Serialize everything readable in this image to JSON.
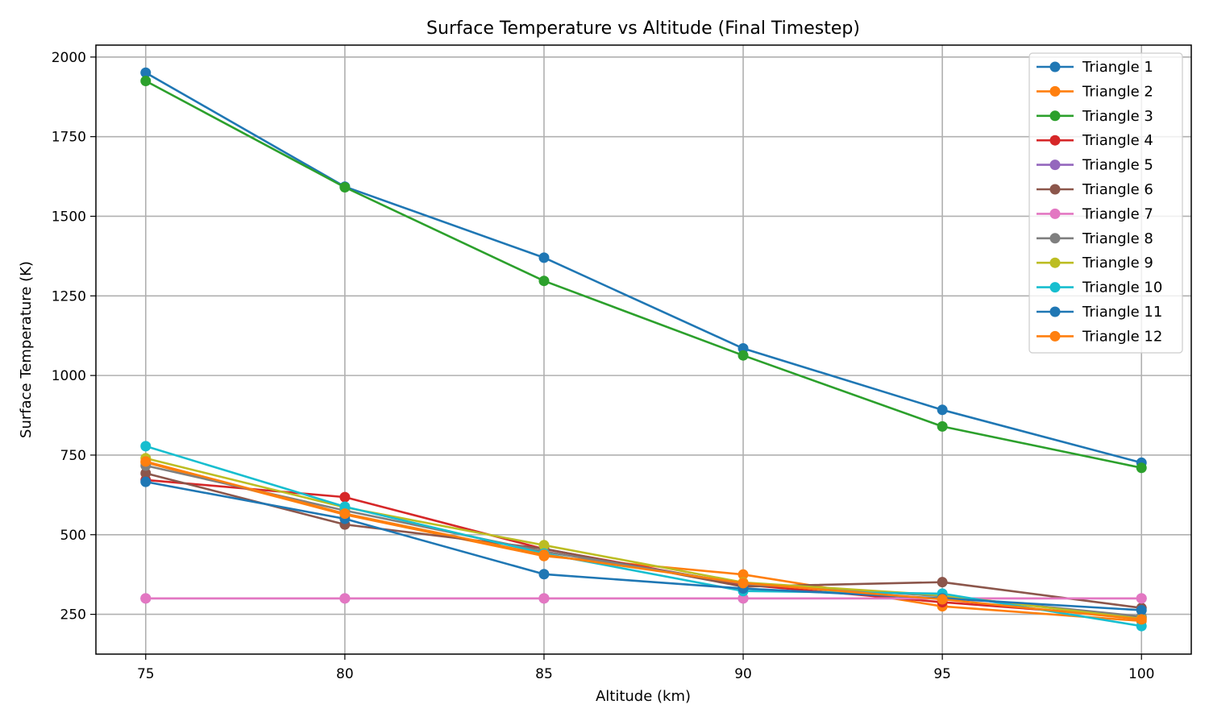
{
  "chart_data": {
    "type": "line",
    "title": "Surface Temperature vs Altitude (Final Timestep)",
    "xlabel": "Altitude (km)",
    "ylabel": "Surface Temperature (K)",
    "x": [
      75,
      80,
      85,
      90,
      95,
      100
    ],
    "xticks": [
      "75",
      "80",
      "85",
      "90",
      "95",
      "100"
    ],
    "yticks": [
      "250",
      "500",
      "750",
      "1000",
      "1250",
      "1500",
      "1750",
      "2000"
    ],
    "xlim": [
      73.75,
      101.25
    ],
    "ylim": [
      125,
      2037.5
    ],
    "grid": true,
    "legend": "upper right",
    "series": [
      {
        "name": "Triangle 1",
        "color": "#1f77b4",
        "values": [
          1951,
          1593,
          1370,
          1085,
          892,
          726
        ]
      },
      {
        "name": "Triangle 2",
        "color": "#ff7f0e",
        "values": [
          727,
          563,
          433,
          375,
          275,
          229
        ]
      },
      {
        "name": "Triangle 3",
        "color": "#2ca02c",
        "values": [
          1925,
          1591,
          1297,
          1063,
          840,
          710
        ]
      },
      {
        "name": "Triangle 4",
        "color": "#d62728",
        "values": [
          672,
          618,
          455,
          343,
          288,
          241
        ]
      },
      {
        "name": "Triangle 5",
        "color": "#9467bd",
        "values": [
          300,
          300,
          300,
          300,
          300,
          300
        ]
      },
      {
        "name": "Triangle 6",
        "color": "#8c564b",
        "values": [
          693,
          532,
          456,
          337,
          351,
          270
        ]
      },
      {
        "name": "Triangle 7",
        "color": "#e377c2",
        "values": [
          300,
          300,
          300,
          300,
          300,
          300
        ]
      },
      {
        "name": "Triangle 8",
        "color": "#7f7f7f",
        "values": [
          717,
          576,
          447,
          346,
          307,
          243
        ]
      },
      {
        "name": "Triangle 9",
        "color": "#bcbd22",
        "values": [
          740,
          586,
          467,
          350,
          310,
          236
        ]
      },
      {
        "name": "Triangle 10",
        "color": "#17becf",
        "values": [
          778,
          588,
          441,
          323,
          315,
          213
        ]
      },
      {
        "name": "Triangle 11",
        "color": "#1f77b4",
        "values": [
          666,
          550,
          376,
          331,
          300,
          263
        ]
      },
      {
        "name": "Triangle 12",
        "color": "#ff7f0e",
        "values": [
          730,
          566,
          437,
          348,
          297,
          234
        ]
      }
    ]
  }
}
